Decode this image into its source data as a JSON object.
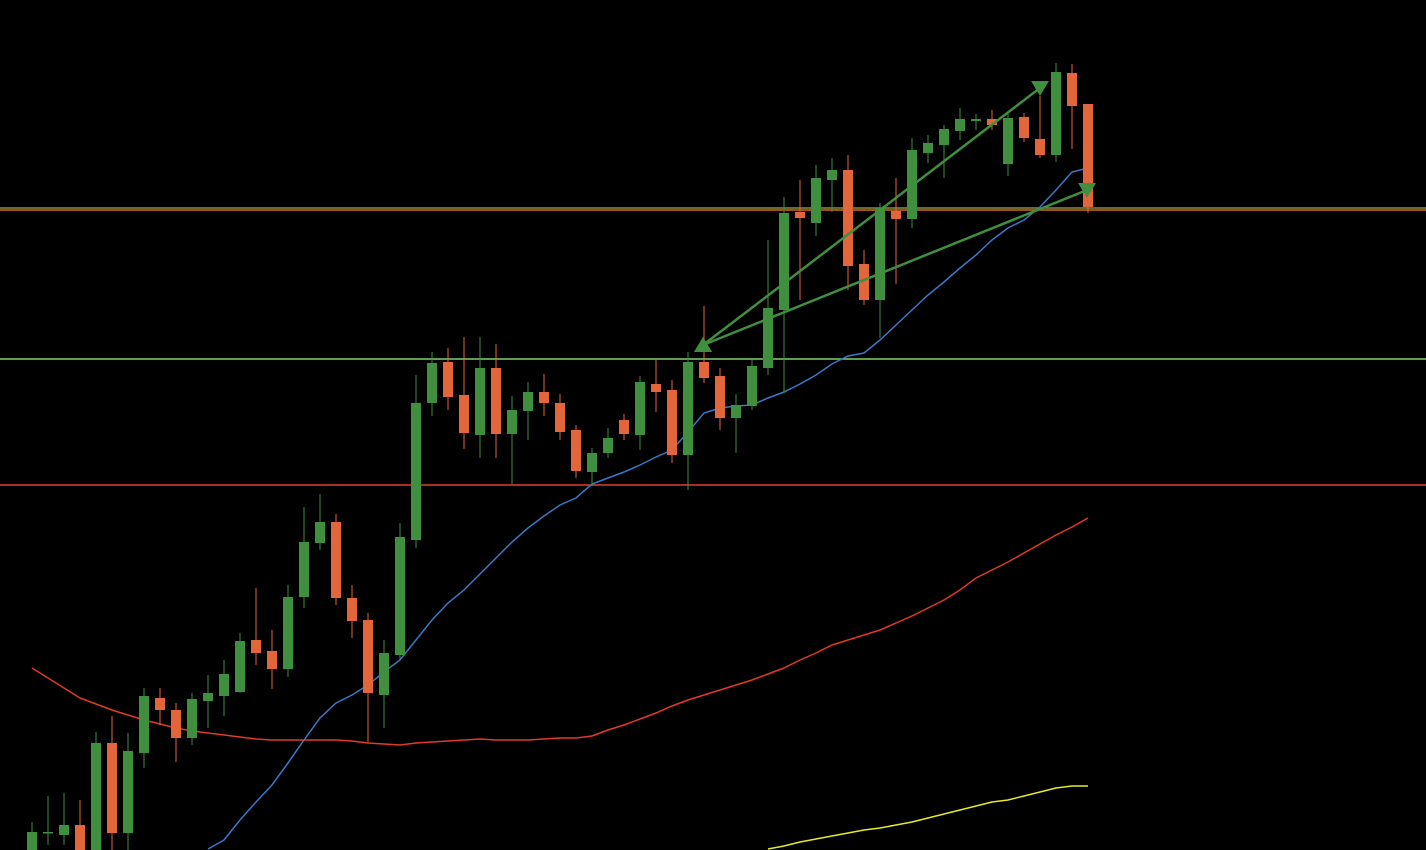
{
  "chart_data": {
    "type": "candlestick",
    "categories": [
      null,
      null,
      null,
      null,
      null,
      null,
      null,
      null,
      null,
      null,
      null,
      null,
      null,
      null,
      null,
      null,
      null,
      null,
      null,
      null,
      null,
      null,
      null,
      null,
      null,
      null,
      null,
      null,
      null,
      null,
      null,
      null,
      null,
      null,
      null,
      null,
      null,
      null,
      null,
      null,
      null,
      null,
      null,
      null,
      null,
      null,
      null,
      null,
      null,
      null,
      null,
      null,
      null,
      null,
      null,
      null,
      null,
      null,
      null,
      null,
      null,
      null,
      null,
      null,
      null,
      null,
      null
    ],
    "open": [
      0,
      17,
      15,
      25,
      0,
      107,
      17,
      97,
      152,
      140,
      112,
      149,
      154,
      158,
      210,
      199,
      181,
      253,
      307,
      328,
      252,
      230,
      155,
      195,
      310,
      447,
      488,
      455,
      415,
      482,
      416,
      439,
      458,
      447,
      420,
      378,
      397,
      430,
      415,
      466,
      460,
      395,
      488,
      474,
      432,
      444,
      482,
      540,
      638,
      627,
      670,
      680,
      586,
      550,
      639,
      631,
      697,
      705,
      719,
      729,
      731,
      686,
      733,
      711,
      695,
      777,
      746
    ],
    "high": [
      28,
      54,
      57,
      50,
      118,
      134,
      117,
      162,
      162,
      147,
      157,
      175,
      190,
      217,
      262,
      220,
      265,
      343,
      356,
      336,
      265,
      237,
      210,
      327,
      475,
      498,
      502,
      513,
      513,
      506,
      454,
      468,
      476,
      456,
      425,
      402,
      422,
      436,
      474,
      490,
      470,
      498,
      544,
      482,
      456,
      490,
      610,
      653,
      670,
      685,
      692,
      695,
      600,
      647,
      672,
      712,
      715,
      725,
      742,
      736,
      740,
      737,
      737,
      754,
      787,
      786,
      746
    ],
    "low": [
      0,
      5,
      5,
      0,
      0,
      0,
      0,
      82,
      125,
      88,
      105,
      122,
      134,
      157,
      185,
      161,
      173,
      242,
      300,
      245,
      212,
      108,
      122,
      190,
      302,
      434,
      440,
      401,
      392,
      392,
      366,
      410,
      434,
      410,
      372,
      365,
      392,
      410,
      400,
      438,
      387,
      360,
      467,
      420,
      397,
      440,
      475,
      457,
      550,
      614,
      638,
      560,
      545,
      512,
      566,
      622,
      687,
      672,
      710,
      720,
      720,
      674,
      708,
      692,
      688,
      701,
      637
    ],
    "close": [
      18,
      18,
      25,
      0,
      107,
      17,
      99,
      154,
      140,
      112,
      151,
      157,
      176,
      209,
      197,
      181,
      253,
      308,
      328,
      252,
      229,
      157,
      197,
      313,
      447,
      487,
      453,
      417,
      482,
      416,
      440,
      458,
      447,
      418,
      379,
      397,
      412,
      416,
      468,
      458,
      395,
      488,
      472,
      432,
      445,
      484,
      542,
      637,
      632,
      672,
      680,
      584,
      550,
      642,
      631,
      700,
      707,
      721,
      731,
      731,
      725,
      732,
      712,
      695,
      778,
      744,
      643
    ],
    "up_color": "#3f8f3f",
    "down_color": "#e2663a",
    "series": [
      {
        "color": "#3a78c8",
        "values": [
          null,
          null,
          null,
          null,
          null,
          null,
          null,
          null,
          null,
          null,
          null,
          1,
          10,
          30,
          48,
          65,
          87,
          110,
          132,
          147,
          155,
          165,
          178,
          190,
          210,
          230,
          247,
          260,
          276,
          292,
          308,
          322,
          334,
          345,
          352,
          366,
          372,
          378,
          385,
          393,
          400,
          418,
          437,
          442,
          444,
          445,
          452,
          458,
          466,
          475,
          486,
          494,
          497,
          510,
          525,
          540,
          555,
          568,
          582,
          595,
          610,
          622,
          630,
          643,
          660,
          678,
          682
        ]
      },
      {
        "color": "#e03a2a",
        "values": [
          182,
          172,
          162,
          152,
          146,
          140,
          135,
          130,
          126,
          122,
          119,
          117,
          115,
          113,
          111,
          110,
          110,
          110,
          110,
          110,
          109,
          107,
          106,
          105,
          107,
          108,
          109,
          110,
          111,
          110,
          110,
          110,
          111,
          112,
          112,
          114,
          120,
          125,
          131,
          137,
          144,
          150,
          155,
          160,
          165,
          170,
          176,
          182,
          190,
          197,
          205,
          210,
          215,
          220,
          227,
          234,
          242,
          250,
          260,
          272,
          280,
          288,
          297,
          306,
          315,
          323,
          332
        ]
      },
      {
        "color": "#e8e82a",
        "values": [
          null,
          null,
          null,
          null,
          null,
          null,
          null,
          null,
          null,
          null,
          null,
          null,
          null,
          null,
          null,
          null,
          null,
          null,
          null,
          null,
          null,
          null,
          null,
          null,
          null,
          null,
          null,
          null,
          null,
          null,
          null,
          null,
          null,
          null,
          null,
          null,
          null,
          null,
          null,
          null,
          null,
          null,
          null,
          null,
          null,
          null,
          1,
          4,
          8,
          11,
          14,
          17,
          20,
          22,
          25,
          28,
          32,
          36,
          40,
          44,
          48,
          50,
          54,
          58,
          62,
          64,
          64
        ]
      }
    ],
    "levels": [
      {
        "value": 642,
        "color": "#8f8a3a"
      },
      {
        "value": 640,
        "color": "#d2691e"
      },
      {
        "value": 491,
        "color": "#7fd36a"
      },
      {
        "value": 365,
        "color": "#e0402a"
      }
    ],
    "trend_lines": [
      {
        "color": "#3f8f3f",
        "x": [
          41.94,
          63
        ],
        "values": [
          505,
          762
        ]
      },
      {
        "color": "#3f8f3f",
        "x": [
          41.94,
          65.94
        ],
        "values": [
          505,
          660
        ]
      }
    ],
    "ylim": [
      0,
      850
    ]
  }
}
